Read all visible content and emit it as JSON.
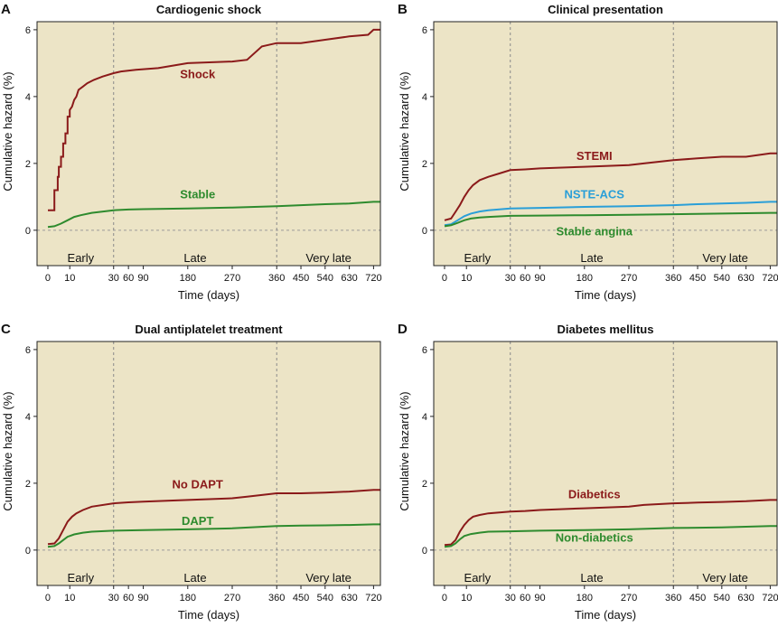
{
  "chart_data": [
    {
      "panel": "A",
      "title": "Cardiogenic shock",
      "type": "line",
      "xlabel": "Time (days)",
      "ylabel": "Cumulative hazard (%)",
      "x_ticks": [
        "0",
        "10",
        "30",
        "60",
        "90",
        "180",
        "270",
        "360",
        "450",
        "540",
        "630",
        "720"
      ],
      "y_ticks": [
        "0",
        "2",
        "4",
        "6"
      ],
      "ylim": [
        0,
        6.2
      ],
      "periods": [
        "Early",
        "Late",
        "Very late"
      ],
      "grid": false,
      "series": [
        {
          "name": "Shock",
          "color": "#8b1a1a",
          "label_at": [
            200,
            4.55
          ],
          "points": [
            [
              0,
              0.6
            ],
            [
              3,
              0.6
            ],
            [
              3,
              1.2
            ],
            [
              4.5,
              1.2
            ],
            [
              4.5,
              1.6
            ],
            [
              5,
              1.6
            ],
            [
              5,
              1.9
            ],
            [
              6,
              1.9
            ],
            [
              6,
              2.2
            ],
            [
              7,
              2.2
            ],
            [
              7,
              2.6
            ],
            [
              8,
              2.6
            ],
            [
              8,
              2.9
            ],
            [
              9,
              2.9
            ],
            [
              9,
              3.4
            ],
            [
              10,
              3.4
            ],
            [
              10,
              3.6
            ],
            [
              11,
              3.7
            ],
            [
              12,
              3.9
            ],
            [
              13,
              4.0
            ],
            [
              14,
              4.2
            ],
            [
              16,
              4.3
            ],
            [
              18,
              4.4
            ],
            [
              21,
              4.5
            ],
            [
              25,
              4.6
            ],
            [
              30,
              4.7
            ],
            [
              45,
              4.75
            ],
            [
              75,
              4.8
            ],
            [
              120,
              4.85
            ],
            [
              180,
              5.0
            ],
            [
              270,
              5.05
            ],
            [
              300,
              5.1
            ],
            [
              330,
              5.5
            ],
            [
              360,
              5.6
            ],
            [
              450,
              5.6
            ],
            [
              540,
              5.7
            ],
            [
              630,
              5.8
            ],
            [
              700,
              5.85
            ],
            [
              720,
              6.0
            ],
            [
              740,
              6.0
            ]
          ]
        },
        {
          "name": "Stable",
          "color": "#2e8b2e",
          "label_at": [
            200,
            0.95
          ],
          "points": [
            [
              0,
              0.1
            ],
            [
              3,
              0.12
            ],
            [
              6,
              0.2
            ],
            [
              9,
              0.3
            ],
            [
              12,
              0.4
            ],
            [
              15,
              0.45
            ],
            [
              20,
              0.52
            ],
            [
              30,
              0.6
            ],
            [
              60,
              0.62
            ],
            [
              90,
              0.63
            ],
            [
              180,
              0.65
            ],
            [
              270,
              0.68
            ],
            [
              360,
              0.72
            ],
            [
              450,
              0.75
            ],
            [
              540,
              0.78
            ],
            [
              630,
              0.8
            ],
            [
              720,
              0.85
            ],
            [
              740,
              0.85
            ]
          ]
        }
      ]
    },
    {
      "panel": "B",
      "title": "Clinical presentation",
      "type": "line",
      "xlabel": "Time (days)",
      "ylabel": "Cumulative hazard (%)",
      "x_ticks": [
        "0",
        "10",
        "30",
        "60",
        "90",
        "180",
        "270",
        "360",
        "450",
        "540",
        "630",
        "720"
      ],
      "y_ticks": [
        "0",
        "2",
        "4",
        "6"
      ],
      "ylim": [
        0,
        6.2
      ],
      "periods": [
        "Early",
        "Late",
        "Very late"
      ],
      "grid": false,
      "series": [
        {
          "name": "STEMI",
          "color": "#8b1a1a",
          "label_at": [
            200,
            2.1
          ],
          "points": [
            [
              0,
              0.3
            ],
            [
              3,
              0.35
            ],
            [
              5,
              0.55
            ],
            [
              7,
              0.75
            ],
            [
              9,
              1.0
            ],
            [
              11,
              1.2
            ],
            [
              13,
              1.35
            ],
            [
              16,
              1.5
            ],
            [
              20,
              1.6
            ],
            [
              25,
              1.7
            ],
            [
              30,
              1.8
            ],
            [
              60,
              1.82
            ],
            [
              90,
              1.85
            ],
            [
              180,
              1.9
            ],
            [
              270,
              1.95
            ],
            [
              300,
              2.0
            ],
            [
              360,
              2.1
            ],
            [
              450,
              2.15
            ],
            [
              540,
              2.2
            ],
            [
              630,
              2.2
            ],
            [
              720,
              2.3
            ],
            [
              740,
              2.3
            ]
          ]
        },
        {
          "name": "NSTE-ACS",
          "color": "#2a9fd8",
          "label_at": [
            200,
            0.95
          ],
          "points": [
            [
              0,
              0.15
            ],
            [
              3,
              0.18
            ],
            [
              6,
              0.3
            ],
            [
              9,
              0.42
            ],
            [
              12,
              0.5
            ],
            [
              16,
              0.56
            ],
            [
              20,
              0.6
            ],
            [
              30,
              0.65
            ],
            [
              90,
              0.67
            ],
            [
              180,
              0.7
            ],
            [
              270,
              0.72
            ],
            [
              360,
              0.75
            ],
            [
              450,
              0.78
            ],
            [
              540,
              0.8
            ],
            [
              630,
              0.82
            ],
            [
              720,
              0.85
            ],
            [
              740,
              0.85
            ]
          ]
        },
        {
          "name": "Stable angina",
          "color": "#2e8b2e",
          "label_at": [
            200,
            -0.15
          ],
          "points": [
            [
              0,
              0.12
            ],
            [
              3,
              0.15
            ],
            [
              6,
              0.22
            ],
            [
              9,
              0.3
            ],
            [
              12,
              0.35
            ],
            [
              16,
              0.38
            ],
            [
              20,
              0.4
            ],
            [
              30,
              0.43
            ],
            [
              90,
              0.44
            ],
            [
              180,
              0.45
            ],
            [
              270,
              0.46
            ],
            [
              360,
              0.48
            ],
            [
              450,
              0.49
            ],
            [
              540,
              0.5
            ],
            [
              630,
              0.51
            ],
            [
              720,
              0.52
            ],
            [
              740,
              0.52
            ]
          ]
        }
      ]
    },
    {
      "panel": "C",
      "title": "Dual antiplatelet treatment",
      "type": "line",
      "xlabel": "Time (days)",
      "ylabel": "Cumulative hazard (%)",
      "x_ticks": [
        "0",
        "10",
        "30",
        "60",
        "90",
        "180",
        "270",
        "360",
        "450",
        "540",
        "630",
        "720"
      ],
      "y_ticks": [
        "0",
        "2",
        "4",
        "6"
      ],
      "ylim": [
        0,
        6.2
      ],
      "periods": [
        "Early",
        "Late",
        "Very late"
      ],
      "grid": false,
      "series": [
        {
          "name": "No DAPT",
          "color": "#8b1a1a",
          "label_at": [
            200,
            1.85
          ],
          "points": [
            [
              0,
              0.18
            ],
            [
              3,
              0.2
            ],
            [
              5,
              0.35
            ],
            [
              7,
              0.6
            ],
            [
              9,
              0.85
            ],
            [
              11,
              1.0
            ],
            [
              13,
              1.1
            ],
            [
              16,
              1.2
            ],
            [
              20,
              1.3
            ],
            [
              30,
              1.4
            ],
            [
              60,
              1.43
            ],
            [
              90,
              1.45
            ],
            [
              180,
              1.5
            ],
            [
              270,
              1.55
            ],
            [
              300,
              1.6
            ],
            [
              360,
              1.7
            ],
            [
              450,
              1.7
            ],
            [
              540,
              1.72
            ],
            [
              630,
              1.75
            ],
            [
              720,
              1.8
            ],
            [
              740,
              1.8
            ]
          ]
        },
        {
          "name": "DAPT",
          "color": "#2e8b2e",
          "label_at": [
            200,
            0.75
          ],
          "points": [
            [
              0,
              0.1
            ],
            [
              3,
              0.12
            ],
            [
              5,
              0.2
            ],
            [
              7,
              0.3
            ],
            [
              9,
              0.4
            ],
            [
              12,
              0.47
            ],
            [
              16,
              0.52
            ],
            [
              20,
              0.55
            ],
            [
              30,
              0.58
            ],
            [
              90,
              0.6
            ],
            [
              180,
              0.62
            ],
            [
              270,
              0.65
            ],
            [
              360,
              0.72
            ],
            [
              450,
              0.73
            ],
            [
              540,
              0.74
            ],
            [
              630,
              0.75
            ],
            [
              720,
              0.77
            ],
            [
              740,
              0.77
            ]
          ]
        }
      ]
    },
    {
      "panel": "D",
      "title": "Diabetes mellitus",
      "type": "line",
      "xlabel": "Time (days)",
      "ylabel": "Cumulative hazard (%)",
      "x_ticks": [
        "0",
        "10",
        "30",
        "60",
        "90",
        "180",
        "270",
        "360",
        "450",
        "540",
        "630",
        "720"
      ],
      "y_ticks": [
        "0",
        "2",
        "4",
        "6"
      ],
      "ylim": [
        0,
        6.2
      ],
      "periods": [
        "Early",
        "Late",
        "Very late"
      ],
      "grid": false,
      "series": [
        {
          "name": "Diabetics",
          "color": "#8b1a1a",
          "label_at": [
            200,
            1.55
          ],
          "points": [
            [
              0,
              0.15
            ],
            [
              3,
              0.17
            ],
            [
              5,
              0.3
            ],
            [
              7,
              0.55
            ],
            [
              9,
              0.75
            ],
            [
              11,
              0.9
            ],
            [
              13,
              1.0
            ],
            [
              16,
              1.05
            ],
            [
              20,
              1.1
            ],
            [
              30,
              1.15
            ],
            [
              60,
              1.17
            ],
            [
              90,
              1.2
            ],
            [
              180,
              1.25
            ],
            [
              270,
              1.3
            ],
            [
              300,
              1.35
            ],
            [
              360,
              1.4
            ],
            [
              450,
              1.42
            ],
            [
              540,
              1.44
            ],
            [
              630,
              1.46
            ],
            [
              720,
              1.5
            ],
            [
              740,
              1.5
            ]
          ]
        },
        {
          "name": "Non-diabetics",
          "color": "#2e8b2e",
          "label_at": [
            200,
            0.25
          ],
          "points": [
            [
              0,
              0.1
            ],
            [
              3,
              0.12
            ],
            [
              5,
              0.2
            ],
            [
              7,
              0.32
            ],
            [
              9,
              0.42
            ],
            [
              12,
              0.48
            ],
            [
              16,
              0.52
            ],
            [
              20,
              0.55
            ],
            [
              30,
              0.56
            ],
            [
              90,
              0.58
            ],
            [
              180,
              0.6
            ],
            [
              270,
              0.62
            ],
            [
              360,
              0.66
            ],
            [
              450,
              0.67
            ],
            [
              540,
              0.68
            ],
            [
              630,
              0.7
            ],
            [
              720,
              0.72
            ],
            [
              740,
              0.72
            ]
          ]
        }
      ]
    }
  ]
}
